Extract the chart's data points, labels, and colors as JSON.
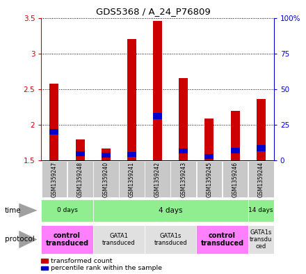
{
  "title": "GDS5368 / A_24_P76809",
  "samples": [
    "GSM1359247",
    "GSM1359248",
    "GSM1359240",
    "GSM1359241",
    "GSM1359242",
    "GSM1359243",
    "GSM1359245",
    "GSM1359246",
    "GSM1359244"
  ],
  "transformed_values": [
    2.58,
    1.79,
    1.67,
    3.2,
    3.46,
    2.65,
    2.09,
    2.19,
    2.36
  ],
  "bar_bottom": 1.5,
  "percentile_positions": [
    1.86,
    1.56,
    1.54,
    1.55,
    2.08,
    1.6,
    1.52,
    1.6,
    1.63
  ],
  "percentile_heights": [
    0.08,
    0.07,
    0.07,
    0.07,
    0.08,
    0.07,
    0.07,
    0.08,
    0.08
  ],
  "ylim": [
    1.5,
    3.5
  ],
  "yticks": [
    1.5,
    2.0,
    2.5,
    3.0,
    3.5
  ],
  "ytick_labels_left": [
    "1.5",
    "2",
    "2.5",
    "3",
    "3.5"
  ],
  "ytick_labels_right": [
    "0",
    "25",
    "50",
    "75",
    "100%"
  ],
  "right_yticks": [
    0,
    25,
    50,
    75,
    100
  ],
  "time_groups": [
    {
      "label": "0 days",
      "start": 0,
      "end": 2,
      "color": "#90EE90"
    },
    {
      "label": "4 days",
      "start": 2,
      "end": 8,
      "color": "#90EE90"
    },
    {
      "label": "14 days",
      "start": 8,
      "end": 9,
      "color": "#90EE90"
    }
  ],
  "protocol_groups": [
    {
      "label": "control\ntransduced",
      "start": 0,
      "end": 2,
      "color": "#FF80FF",
      "bold": true
    },
    {
      "label": "GATA1\ntransduced",
      "start": 2,
      "end": 4,
      "color": "#E0E0E0",
      "bold": false
    },
    {
      "label": "GATA1s\ntransduced",
      "start": 4,
      "end": 6,
      "color": "#E0E0E0",
      "bold": false
    },
    {
      "label": "control\ntransduced",
      "start": 6,
      "end": 8,
      "color": "#FF80FF",
      "bold": true
    },
    {
      "label": "GATA1s\ntransdu\nced",
      "start": 8,
      "end": 9,
      "color": "#E0E0E0",
      "bold": false
    }
  ],
  "bar_color": "#CC0000",
  "percentile_color": "#0000CC",
  "sample_box_color": "#C8C8C8",
  "bg_color": "#FFFFFF",
  "left_axis_color": "#CC0000",
  "right_axis_color": "#0000CC",
  "legend_items": [
    {
      "color": "#CC0000",
      "label": "transformed count"
    },
    {
      "color": "#0000CC",
      "label": "percentile rank within the sample"
    }
  ]
}
